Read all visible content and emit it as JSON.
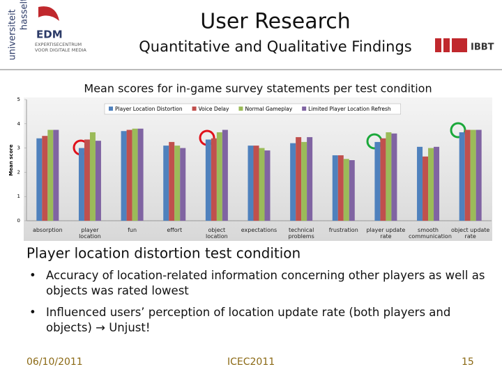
{
  "header": {
    "title": "User Research",
    "subtitle": "Quantitative and Qualitative Findings",
    "left_logo": [
      "universiteit",
      "hasselt",
      "EDM",
      "EXPERTISECENTRUM",
      "VOOR DIGITALE MEDIA"
    ],
    "right_logo": "IBBT"
  },
  "chart_data": {
    "type": "bar",
    "title": "Mean scores for in-game survey statements per test condition",
    "y_label": "Mean score",
    "categories": [
      "absorption",
      "player location",
      "fun",
      "effort",
      "object location",
      "expectations",
      "technical problems",
      "frustration",
      "player update rate",
      "smooth communication",
      "object update rate"
    ],
    "series": [
      {
        "name": "Player Location Distortion",
        "color": "#4f81bd",
        "values": [
          3.4,
          3.0,
          3.7,
          3.1,
          3.35,
          3.1,
          3.2,
          2.7,
          3.25,
          3.05,
          3.65
        ]
      },
      {
        "name": "Voice Delay",
        "color": "#c0504d",
        "values": [
          3.5,
          3.35,
          3.75,
          3.25,
          3.4,
          3.1,
          3.45,
          2.7,
          3.4,
          2.65,
          3.75
        ]
      },
      {
        "name": "Normal Gameplay",
        "color": "#9bbb59",
        "values": [
          3.75,
          3.65,
          3.8,
          3.1,
          3.65,
          3.0,
          3.25,
          2.55,
          3.65,
          3.0,
          3.75
        ]
      },
      {
        "name": "Limited Player Location Refresh",
        "color": "#8064a2",
        "values": [
          3.75,
          3.3,
          3.8,
          3.0,
          3.75,
          2.9,
          3.45,
          2.5,
          3.6,
          3.05,
          3.75
        ]
      }
    ],
    "ylim": [
      0,
      5
    ],
    "yticks": [
      0,
      1,
      2,
      3,
      4,
      5
    ],
    "grid": false,
    "legend": "top"
  },
  "body": {
    "heading": "Player location distortion test condition",
    "bullets": [
      "Accuracy of location-related information concerning other players as well as objects was rated lowest",
      "Influenced users’ perception of location update rate (both players and objects) → Unjust!"
    ]
  },
  "footer": {
    "date": "06/10/2011",
    "event": "ICEC2011",
    "page": "15"
  }
}
